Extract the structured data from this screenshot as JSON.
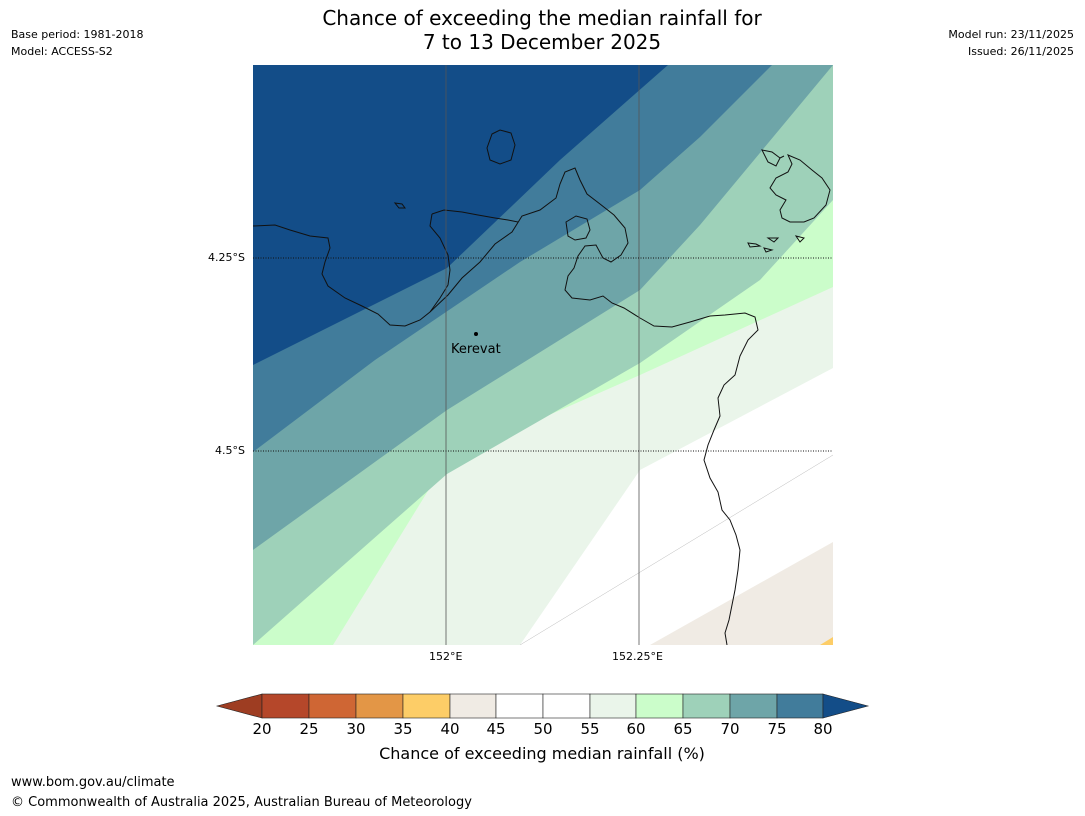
{
  "header": {
    "base_period": "Base period: 1981-2018",
    "model": "Model: ACCESS-S2",
    "model_run": "Model run: 23/11/2025",
    "issued": "Issued: 26/11/2025",
    "title_line1": "Chance of exceeding the median rainfall for",
    "title_line2": "7 to 13 December 2025"
  },
  "map": {
    "longitude_labels": [
      "152°E",
      "152.25°E"
    ],
    "latitude_labels": [
      "4.25°S",
      "4.5°S"
    ],
    "place": {
      "name": "Kerevat"
    }
  },
  "colorbar": {
    "ticks": [
      "20",
      "25",
      "30",
      "35",
      "40",
      "45",
      "50",
      "55",
      "60",
      "65",
      "70",
      "75",
      "80"
    ],
    "label": "Chance of exceeding median rainfall (%)",
    "colors": {
      "below_20": "#9e3d22",
      "20_25": "#b5472a",
      "25_30": "#cf6634",
      "30_35": "#e39646",
      "35_40": "#fdcd67",
      "40_45": "#f0ebe4",
      "45_50": "#ffffff",
      "50_55": "#ffffff",
      "55_60": "#eaf5ea",
      "60_65": "#cbfdca",
      "65_70": "#9ed1b9",
      "70_75": "#6ea5a8",
      "75_80": "#417c9b",
      "above_80": "#134d88"
    }
  },
  "footer": {
    "url": "www.bom.gov.au/climate",
    "copyright": "© Commonwealth of Australia 2025, Australian Bureau of Meteorology"
  }
}
